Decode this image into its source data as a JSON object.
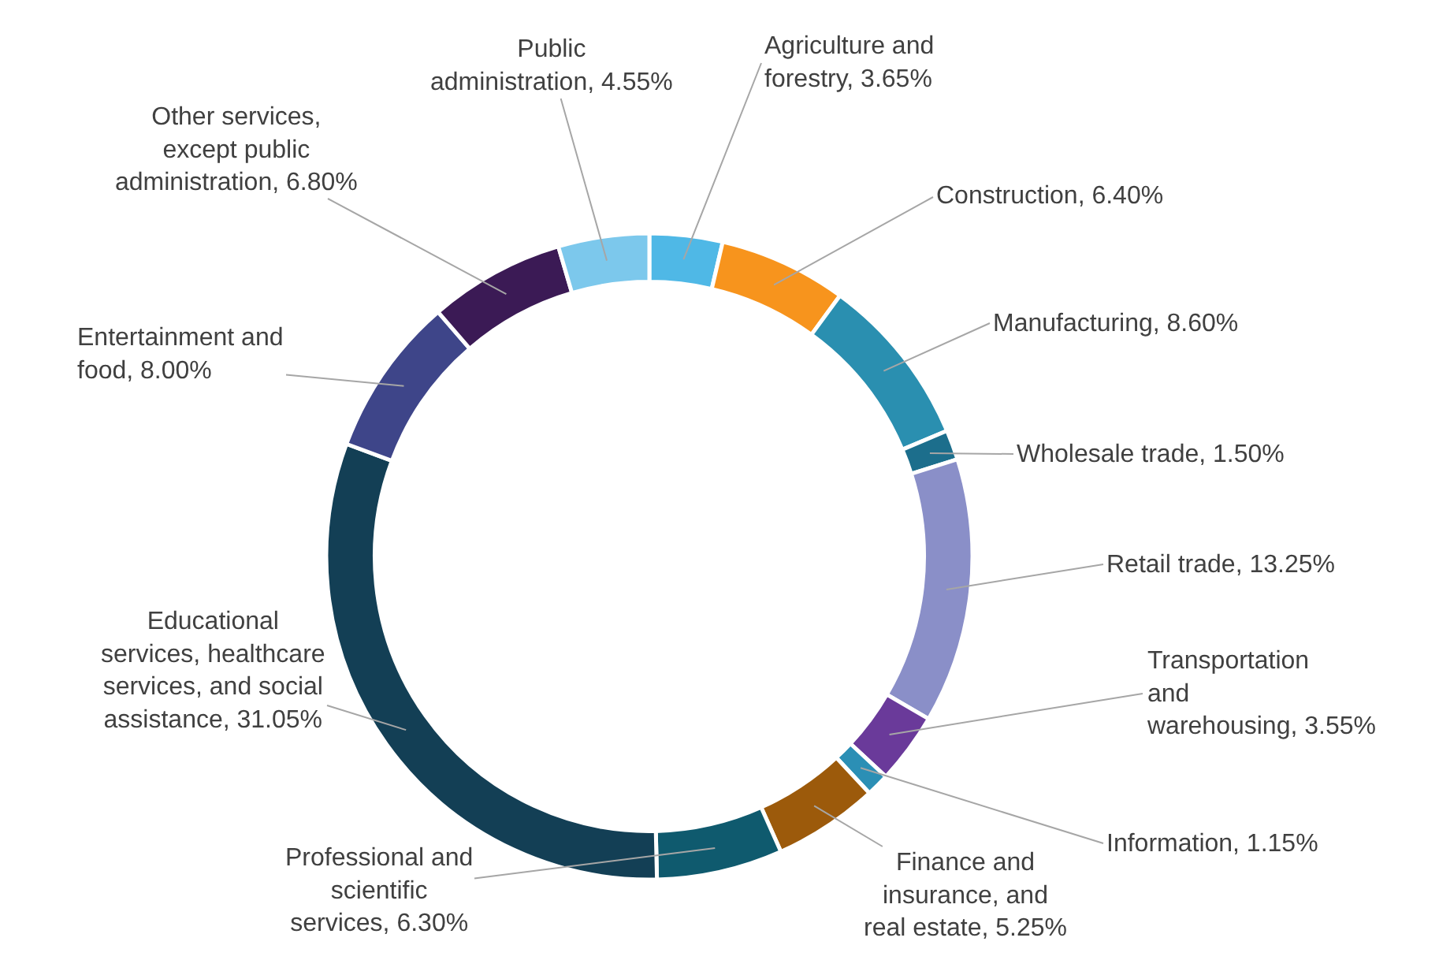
{
  "chart_data": {
    "type": "donut",
    "categories": [
      "Agriculture and forestry",
      "Construction",
      "Manufacturing",
      "Wholesale trade",
      "Retail trade",
      "Transportation and warehousing",
      "Information",
      "Finance and insurance, and real estate",
      "Professional and scientific services",
      "Educational services, healthcare services, and social assistance",
      "Entertainment and food",
      "Other services, except public administration",
      "Public administration"
    ],
    "values": [
      3.65,
      6.4,
      8.6,
      1.5,
      13.25,
      3.55,
      1.15,
      5.25,
      6.3,
      31.05,
      8.0,
      6.8,
      4.55
    ],
    "value_labels": [
      "3.65%",
      "6.40%",
      "8.60%",
      "1.50%",
      "13.25%",
      "3.55%",
      "1.15%",
      "5.25%",
      "6.30%",
      "31.05%",
      "8.00%",
      "6.80%",
      "4.55%"
    ],
    "colors": [
      "#4fb8e6",
      "#f7941d",
      "#2a8fb0",
      "#1c6e8c",
      "#8a8fc8",
      "#6a3a9a",
      "#2b8fb5",
      "#9c5a0b",
      "#0f5a6e",
      "#133f55",
      "#3e4589",
      "#3b1a55",
      "#7cc8ec"
    ],
    "legend": false
  }
}
